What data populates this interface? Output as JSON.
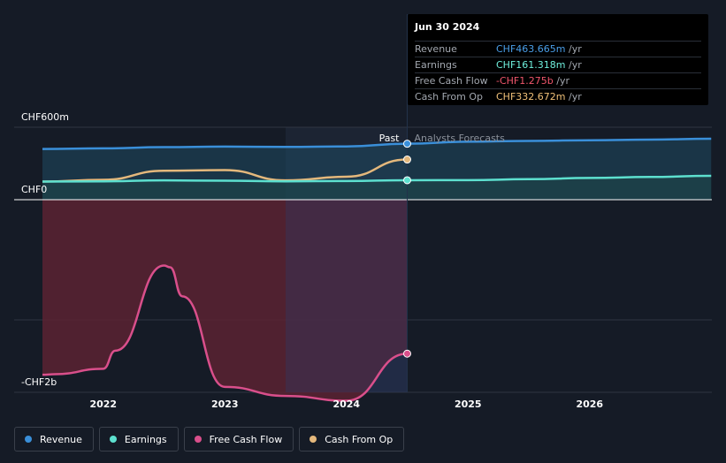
{
  "chart_data": {
    "type": "line",
    "y_axis": {
      "ticks": [
        "CHF600m",
        "CHF0",
        "-CHF2b"
      ],
      "ylim": [
        -2000,
        600
      ],
      "unit": "CHF m"
    },
    "x_axis": {
      "ticks": [
        "2022",
        "2023",
        "2024",
        "2025",
        "2026"
      ],
      "xlim": [
        2021.5,
        2027.0
      ]
    },
    "divider": {
      "x": 2024.5,
      "past_label": "Past",
      "forecast_label": "Analysts Forecasts"
    },
    "series": [
      {
        "name": "Revenue",
        "color": "#3a8fd9",
        "fill": true,
        "points": [
          [
            2021.5,
            420
          ],
          [
            2022.0,
            425
          ],
          [
            2022.5,
            435
          ],
          [
            2023.0,
            440
          ],
          [
            2023.5,
            437
          ],
          [
            2024.0,
            441
          ],
          [
            2024.5,
            463.665
          ]
        ],
        "forecast": [
          [
            2024.5,
            463.665
          ],
          [
            2025.0,
            480
          ],
          [
            2025.5,
            487
          ],
          [
            2026.0,
            492
          ],
          [
            2026.5,
            498
          ],
          [
            2027.0,
            505
          ]
        ]
      },
      {
        "name": "Earnings",
        "color": "#5de0cf",
        "fill": true,
        "points": [
          [
            2021.5,
            150
          ],
          [
            2022.0,
            152
          ],
          [
            2022.5,
            160
          ],
          [
            2023.0,
            157
          ],
          [
            2023.5,
            152
          ],
          [
            2024.0,
            155
          ],
          [
            2024.5,
            161.318
          ]
        ],
        "forecast": [
          [
            2024.5,
            161.318
          ],
          [
            2025.0,
            162
          ],
          [
            2025.5,
            170
          ],
          [
            2026.0,
            180
          ],
          [
            2026.5,
            188
          ],
          [
            2027.0,
            198
          ]
        ]
      },
      {
        "name": "Free Cash Flow",
        "color": "#d94f8b",
        "fill": true,
        "points": [
          [
            2021.5,
            -1450
          ],
          [
            2021.6,
            -1445
          ],
          [
            2022.0,
            -1400
          ],
          [
            2022.1,
            -1250
          ],
          [
            2022.5,
            -545
          ],
          [
            2022.55,
            -560
          ],
          [
            2022.65,
            -800
          ],
          [
            2023.0,
            -1550
          ],
          [
            2023.5,
            -1625
          ],
          [
            2024.0,
            -1665
          ],
          [
            2024.5,
            -1275
          ]
        ],
        "forecast": []
      },
      {
        "name": "Cash From Op",
        "color": "#e4b87c",
        "fill": false,
        "points": [
          [
            2021.5,
            150
          ],
          [
            2022.0,
            165
          ],
          [
            2022.5,
            240
          ],
          [
            2023.0,
            245
          ],
          [
            2023.5,
            160
          ],
          [
            2024.0,
            190
          ],
          [
            2024.5,
            332.672
          ]
        ],
        "forecast": []
      }
    ]
  },
  "tooltip": {
    "date": "Jun 30 2024",
    "rows": [
      {
        "label": "Revenue",
        "value": "CHF463.665m",
        "unit": "/yr",
        "color": "#4a9ee8"
      },
      {
        "label": "Earnings",
        "value": "CHF161.318m",
        "unit": "/yr",
        "color": "#6ff0dd"
      },
      {
        "label": "Free Cash Flow",
        "value": "-CHF1.275b",
        "unit": "/yr",
        "color": "#f0566c"
      },
      {
        "label": "Cash From Op",
        "value": "CHF332.672m",
        "unit": "/yr",
        "color": "#f0c078"
      }
    ]
  },
  "legend": [
    {
      "label": "Revenue",
      "color": "#3a8fd9"
    },
    {
      "label": "Earnings",
      "color": "#5de0cf"
    },
    {
      "label": "Free Cash Flow",
      "color": "#d94f8b"
    },
    {
      "label": "Cash From Op",
      "color": "#e4b87c"
    }
  ]
}
